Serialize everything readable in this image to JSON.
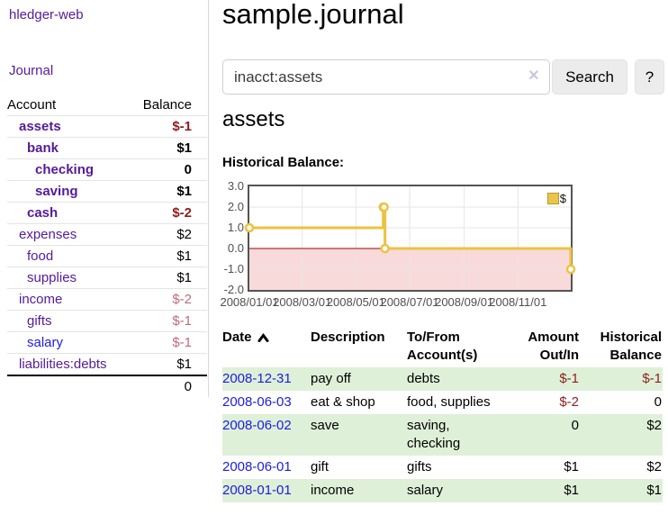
{
  "app": {
    "brand": "hledger-web",
    "nav": {
      "journal": "Journal"
    }
  },
  "sidebar": {
    "table_headers": {
      "account": "Account",
      "balance": "Balance"
    },
    "accounts": [
      {
        "name": "assets",
        "depth": 0,
        "bold": true,
        "link_color": "purple",
        "balance": "$-1",
        "balance_style": "neg-bold"
      },
      {
        "name": "bank",
        "depth": 1,
        "bold": true,
        "link_color": "purple",
        "balance": "$1",
        "balance_style": "pos-bold"
      },
      {
        "name": "checking",
        "depth": 2,
        "bold": true,
        "link_color": "purple",
        "balance": "0",
        "balance_style": "pos-bold"
      },
      {
        "name": "saving",
        "depth": 2,
        "bold": true,
        "link_color": "purple",
        "balance": "$1",
        "balance_style": "pos-bold"
      },
      {
        "name": "cash",
        "depth": 1,
        "bold": true,
        "link_color": "purple",
        "balance": "$-2",
        "balance_style": "neg-bold"
      },
      {
        "name": "expenses",
        "depth": 0,
        "bold": false,
        "link_color": "purple",
        "balance": "$2",
        "balance_style": "plain"
      },
      {
        "name": "food",
        "depth": 1,
        "bold": false,
        "link_color": "purple",
        "balance": "$1",
        "balance_style": "plain"
      },
      {
        "name": "supplies",
        "depth": 1,
        "bold": false,
        "link_color": "purple",
        "balance": "$1",
        "balance_style": "plain"
      },
      {
        "name": "income",
        "depth": 0,
        "bold": false,
        "link_color": "purple",
        "balance": "$-2",
        "balance_style": "rose"
      },
      {
        "name": "gifts",
        "depth": 1,
        "bold": false,
        "link_color": "purple",
        "balance": "$-1",
        "balance_style": "rose"
      },
      {
        "name": "salary",
        "depth": 1,
        "bold": false,
        "link_color": "blue",
        "balance": "$-1",
        "balance_style": "rose"
      },
      {
        "name": "liabilities:debts",
        "depth": 0,
        "bold": false,
        "link_color": "purple",
        "balance": "$1",
        "balance_style": "plain"
      }
    ],
    "total": "0"
  },
  "main": {
    "title": "sample.journal",
    "search": {
      "value": "inacct:assets",
      "clear_icon": "×",
      "button": "Search",
      "help_button": "?"
    },
    "section_heading": "assets",
    "chart_label": "Historical Balance:"
  },
  "chart_data": {
    "type": "line",
    "title": "Historical Balance:",
    "series": [
      {
        "name": "$",
        "color": "#edc240",
        "step": true,
        "points": [
          {
            "date": "2008-01-01",
            "value": 1
          },
          {
            "date": "2008-06-01",
            "value": 2
          },
          {
            "date": "2008-06-02",
            "value": 2
          },
          {
            "date": "2008-06-03",
            "value": 0
          },
          {
            "date": "2008-12-31",
            "value": -1
          }
        ]
      }
    ],
    "x_range": [
      "2008-01-01",
      "2008-12-31"
    ],
    "ylim": [
      -2,
      3
    ],
    "x_ticks": [
      "2008/01/01",
      "2008/03/01",
      "2008/05/01",
      "2008/07/01",
      "2008/09/01",
      "2008/11/01"
    ],
    "y_ticks": [
      "3.0",
      "2.0",
      "1.0",
      "0.0",
      "-1.0",
      "-2.0"
    ],
    "legend": "$",
    "legend_position": "top-right",
    "grid": true,
    "grid_color": "#e6e6e6",
    "border_color": "#545454",
    "negative_region_color": "#f9dada",
    "zero_line_color": "#a40000",
    "marker_fill": "#ffffff"
  },
  "register": {
    "headers": [
      {
        "lines": [
          "Date"
        ],
        "sortable": true,
        "sort": "asc"
      },
      {
        "lines": [
          "Description"
        ]
      },
      {
        "lines": [
          "To/From",
          "Account(s)"
        ]
      },
      {
        "lines": [
          "Amount",
          "Out/In"
        ],
        "align": "right"
      },
      {
        "lines": [
          "Historical",
          "Balance"
        ],
        "align": "right"
      }
    ],
    "rows": [
      {
        "date": "2008-12-31",
        "description": "pay off",
        "accounts": [
          "debts"
        ],
        "amount": "$-1",
        "amount_neg": true,
        "balance": "$-1",
        "balance_neg": true
      },
      {
        "date": "2008-06-03",
        "description": "eat & shop",
        "accounts": [
          "food, supplies"
        ],
        "amount": "$-2",
        "amount_neg": true,
        "balance": "0",
        "balance_neg": false
      },
      {
        "date": "2008-06-02",
        "description": "save",
        "accounts": [
          "saving,",
          "checking"
        ],
        "amount": "0",
        "amount_neg": false,
        "balance": "$2",
        "balance_neg": false
      },
      {
        "date": "2008-06-01",
        "description": "gift",
        "accounts": [
          "gifts"
        ],
        "amount": "$1",
        "amount_neg": false,
        "balance": "$2",
        "balance_neg": false
      },
      {
        "date": "2008-01-01",
        "description": "income",
        "accounts": [
          "salary"
        ],
        "amount": "$1",
        "amount_neg": false,
        "balance": "$1",
        "balance_neg": false
      }
    ]
  },
  "colors": {
    "link_purple": "#551a99",
    "link_blue": "#1c1ce0",
    "negative_bold_red": "#8f1d1d",
    "negative_muted_rose": "#bd6c7c",
    "row_stripe_green": "#dff0d8",
    "chart_gold": "#edc240"
  }
}
